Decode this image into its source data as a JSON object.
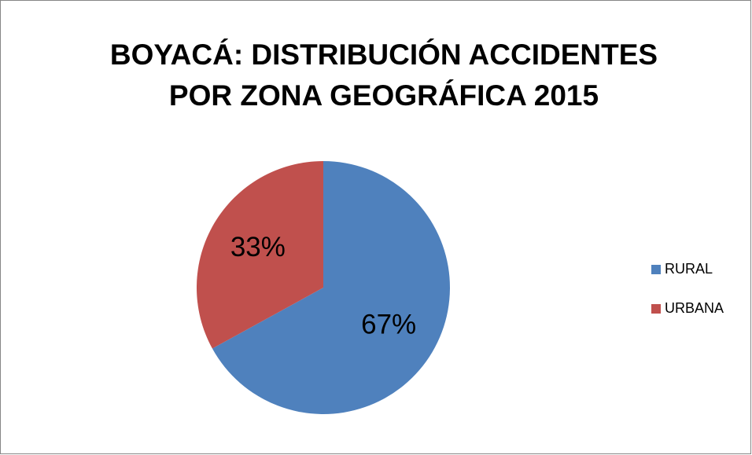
{
  "chart_data": {
    "type": "pie",
    "title": [
      "BOYACÁ: DISTRIBUCIÓN ACCIDENTES",
      "POR ZONA GEOGRÁFICA 2015"
    ],
    "categories": [
      "RURAL",
      "URBANA"
    ],
    "values": [
      67,
      33
    ],
    "value_labels": [
      "67%",
      "33%"
    ],
    "colors": [
      "#4f81bd",
      "#c0504d"
    ],
    "legend": "right"
  }
}
